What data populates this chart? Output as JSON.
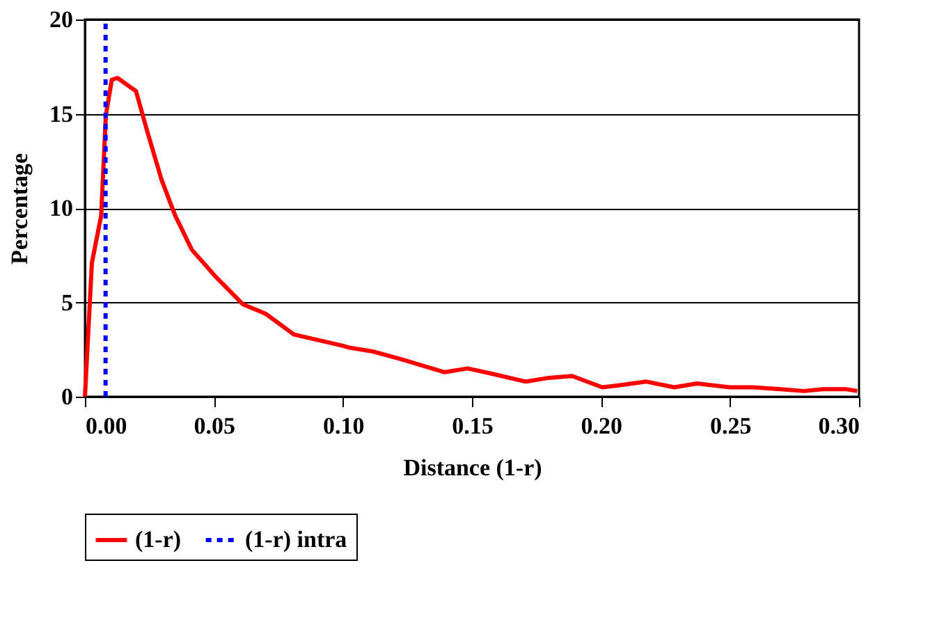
{
  "chart_data": {
    "type": "line",
    "xlabel": "Distance (1-r)",
    "ylabel": "Percentage",
    "xlim": [
      0,
      0.3
    ],
    "ylim": [
      0,
      20
    ],
    "xticks": [
      {
        "value": 0,
        "label": "0.00"
      },
      {
        "value": 0.05,
        "label": "0.05"
      },
      {
        "value": 0.1,
        "label": "0.10"
      },
      {
        "value": 0.15,
        "label": "0.15"
      },
      {
        "value": 0.2,
        "label": "0.20"
      },
      {
        "value": 0.25,
        "label": "0.25"
      },
      {
        "value": 0.3,
        "label": "0.30"
      }
    ],
    "yticks": [
      0,
      5,
      10,
      15,
      20
    ],
    "grid": "y",
    "legend": "bottom",
    "marker": "none",
    "series": [
      {
        "name": "(1-r)",
        "color": "#ff0000",
        "line_style": "solid",
        "x": [
          0,
          0.0027,
          0.0063,
          0.0081,
          0.0104,
          0.0126,
          0.0198,
          0.0243,
          0.0297,
          0.035,
          0.0414,
          0.0504,
          0.0612,
          0.07,
          0.081,
          0.1,
          0.1025,
          0.1115,
          0.1223,
          0.1295,
          0.1394,
          0.1483,
          0.1583,
          0.1708,
          0.1798,
          0.1888,
          0.2005,
          0.2068,
          0.2176,
          0.2284,
          0.2373,
          0.2499,
          0.2589,
          0.2697,
          0.2787,
          0.2859,
          0.2949,
          0.2993
        ],
        "values": [
          0,
          7.1,
          9.6,
          14.9,
          16.8,
          16.9,
          16.2,
          14.0,
          11.5,
          9.6,
          7.8,
          6.4,
          4.9,
          4.4,
          3.3,
          2.7,
          2.6,
          2.4,
          2.0,
          1.7,
          1.3,
          1.5,
          1.2,
          0.8,
          1.0,
          1.1,
          0.5,
          0.6,
          0.8,
          0.5,
          0.7,
          0.5,
          0.5,
          0.4,
          0.3,
          0.4,
          0.4,
          0.3
        ]
      },
      {
        "name": "(1-r) intra",
        "color": "#0000ff",
        "line_style": "dotted",
        "x": [
          0.008,
          0.008
        ],
        "values": [
          0,
          20
        ]
      }
    ]
  }
}
